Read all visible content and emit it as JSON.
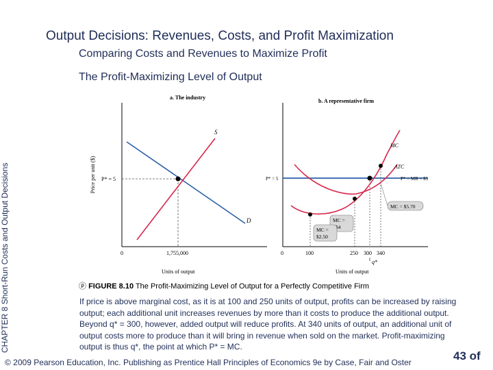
{
  "slide": {
    "title": "Output Decisions:  Revenues, Costs, and Profit Maximization",
    "subtitle": "Comparing Costs and Revenues to Maximize Profit",
    "subtitle2": "The Profit-Maximizing Level of Output",
    "side_chapter": "CHAPTER 8",
    "side_text": "Short-Run Costs and Output Decisions",
    "caption_icon": "ⓟ",
    "caption_num": "FIGURE 8.10",
    "caption_text": "The Profit-Maximizing Level of Output for a Perfectly Competitive Firm",
    "body": "If price is above marginal cost, as it is at 100 and 250 units of output, profits can be increased by raising output; each additional unit increases revenues by more than it costs to produce the additional output. Beyond q* = 300, however, added output will reduce profits. At 340 units of output, an additional unit of output costs more to produce than it will bring in revenue when sold on the market. Profit-maximizing output is thus q*, the point at which P* = MC.",
    "footer": "© 2009 Pearson Education, Inc. Publishing as Prentice Hall   Principles of Economics 9e by Case, Fair and Oster",
    "page": "43 of"
  },
  "figure": {
    "panel_a": {
      "heading": "a. The industry",
      "ylabel": "Price per unit ($)",
      "xlabel": "Units of output",
      "price_label": "P* = 5",
      "x0": "0",
      "xq": "1,755,000",
      "supply": "S",
      "demand": "D"
    },
    "panel_b": {
      "heading": "b. A representative firm",
      "xlabel": "Units of output",
      "price_label": "P* = 5",
      "mr_label": "P* = MR = $5",
      "mc": "MC",
      "atc": "ATC",
      "x0": "0",
      "x100": "100",
      "x250": "250",
      "x300": "300",
      "x340": "340",
      "qstar": "q*",
      "box_mc55_line1": "MC = $5.70",
      "box_mc4_line1": "MC =",
      "box_mc4_line2": "$4",
      "box_mc250_line1": "MC =",
      "box_mc250_line2": "$2.50"
    },
    "colors": {
      "demand": "#2a5fa8",
      "supply": "#d8264a",
      "mr": "#2a5fa8",
      "mc": "#d8264a",
      "atc": "#d8264a"
    }
  }
}
